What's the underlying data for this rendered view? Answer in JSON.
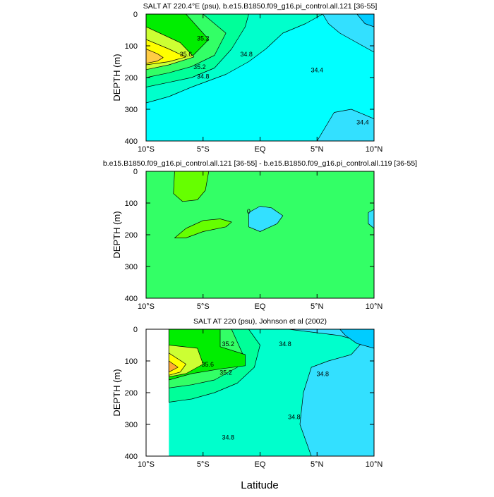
{
  "figure": {
    "xlabel": "Latitude"
  },
  "colors": {
    "cyan_dark": "#00ccff",
    "cyan_mid": "#33e0ff",
    "cyan": "#00ffff",
    "aqua_green": "#00ffcc",
    "spring_green": "#00ff99",
    "mint": "#33ff66",
    "green": "#00ee00",
    "lime": "#66ff00",
    "yellow_green": "#ccff33",
    "yellow": "#ffff00",
    "light_orange": "#ffcc44",
    "orange": "#ffaa33",
    "white": "#ffffff"
  },
  "chart_data": [
    {
      "type": "contour",
      "title": "SALT AT 220.4°E (psu), b.e15.B1850.f09_g16.pi_control.all.121 [36-55]",
      "xlabel": "",
      "ylabel": "DEPTH (m)",
      "xlim": [
        -10,
        10
      ],
      "ylim": [
        400,
        0
      ],
      "xticks": [
        -10,
        -5,
        0,
        5,
        10
      ],
      "xtick_labels": [
        "10°S",
        "5°S",
        "EQ",
        "5°N",
        "10°N"
      ],
      "yticks": [
        0,
        100,
        200,
        300,
        400
      ],
      "ytick_labels": [
        "0",
        "100",
        "200",
        "300",
        "400"
      ],
      "regions": [
        {
          "name": "background",
          "level": "34.4-34.6",
          "color": "cyan",
          "points": [
            [
              -10,
              0
            ],
            [
              10,
              0
            ],
            [
              10,
              400
            ],
            [
              -10,
              400
            ]
          ]
        },
        {
          "name": "low-north",
          "level": "<34.4",
          "color": "cyan_mid",
          "points": [
            [
              5.5,
              0
            ],
            [
              10,
              0
            ],
            [
              10,
              120
            ],
            [
              8.5,
              90
            ],
            [
              7,
              60
            ],
            [
              6,
              30
            ]
          ]
        },
        {
          "name": "low-north-deep",
          "level": "<34.4",
          "color": "cyan_mid",
          "points": [
            [
              10,
              330
            ],
            [
              8,
              300
            ],
            [
              6.5,
              310
            ],
            [
              5,
              400
            ],
            [
              10,
              400
            ]
          ]
        },
        {
          "name": "low-northeast",
          "level": "<34.2",
          "color": "cyan_dark",
          "points": [
            [
              8.5,
              0
            ],
            [
              10,
              0
            ],
            [
              10,
              40
            ],
            [
              9.2,
              30
            ]
          ]
        },
        {
          "name": "band-34.6",
          "level": "34.6-34.8",
          "color": "aqua_green",
          "points": [
            [
              -10,
              0
            ],
            [
              5.5,
              0
            ],
            [
              4,
              30
            ],
            [
              2,
              60
            ],
            [
              0.5,
              110
            ],
            [
              -1,
              150
            ],
            [
              -3,
              190
            ],
            [
              -6,
              230
            ],
            [
              -8,
              260
            ],
            [
              -10,
              280
            ]
          ]
        },
        {
          "name": "band-34.8",
          "level": "34.8-35.0",
          "color": "spring_green",
          "points": [
            [
              -10,
              0
            ],
            [
              -1,
              0
            ],
            [
              -1.3,
              40
            ],
            [
              -2.5,
              110
            ],
            [
              -4,
              170
            ],
            [
              -6,
              200
            ],
            [
              -8,
              215
            ],
            [
              -10,
              230
            ]
          ]
        },
        {
          "name": "band-35.0",
          "level": "35.0-35.2",
          "color": "mint",
          "points": [
            [
              -10,
              0
            ],
            [
              -5,
              0
            ],
            [
              -3,
              60
            ],
            [
              -4,
              130
            ],
            [
              -6,
              165
            ],
            [
              -8,
              185
            ],
            [
              -10,
              200
            ]
          ]
        },
        {
          "name": "band-35.2",
          "level": "35.2-35.4",
          "color": "green",
          "points": [
            [
              -10,
              0
            ],
            [
              -6.5,
              0
            ],
            [
              -4.5,
              80
            ],
            [
              -6,
              135
            ],
            [
              -8,
              150
            ],
            [
              -10,
              165
            ]
          ]
        },
        {
          "name": "band-35.4",
          "level": "35.4-35.6",
          "color": "yellow_green",
          "points": [
            [
              -10,
              40
            ],
            [
              -7,
              90
            ],
            [
              -5.8,
              135
            ],
            [
              -8,
              160
            ],
            [
              -10,
              175
            ]
          ]
        },
        {
          "name": "band-35.6",
          "level": "35.6-35.8",
          "color": "yellow",
          "points": [
            [
              -10,
              80
            ],
            [
              -8,
              110
            ],
            [
              -6.5,
              135
            ],
            [
              -8,
              150
            ],
            [
              -10,
              160
            ]
          ]
        },
        {
          "name": "core",
          "level": ">35.8",
          "color": "light_orange",
          "points": [
            [
              -10,
              110
            ],
            [
              -9,
              125
            ],
            [
              -8.5,
              137
            ],
            [
              -9,
              148
            ],
            [
              -10,
              155
            ]
          ]
        }
      ],
      "labels": [
        {
          "text": "35.2",
          "x": -5,
          "y": 75
        },
        {
          "text": "35.6",
          "x": -6.5,
          "y": 125
        },
        {
          "text": "35.2",
          "x": -5.3,
          "y": 165
        },
        {
          "text": "34.8",
          "x": -5,
          "y": 195
        },
        {
          "text": "34.8",
          "x": -1.2,
          "y": 125
        },
        {
          "text": "34.4",
          "x": 5,
          "y": 175
        },
        {
          "text": "34.4",
          "x": 9,
          "y": 340
        }
      ]
    },
    {
      "type": "contour",
      "title": "b.e15.B1850.f09_g16.pi_control.all.121 [36-55] - b.e15.B1850.f09_g16.pi_control.all.119 [36-55]",
      "xlabel": "",
      "ylabel": "DEPTH (m)",
      "xlim": [
        -10,
        10
      ],
      "ylim": [
        400,
        0
      ],
      "xticks": [
        -10,
        -5,
        0,
        5,
        10
      ],
      "xtick_labels": [
        "10°S",
        "5°S",
        "EQ",
        "5°N",
        "10°N"
      ],
      "yticks": [
        0,
        100,
        200,
        300,
        400
      ],
      "ytick_labels": [
        "0",
        "100",
        "200",
        "300",
        "400"
      ],
      "regions": [
        {
          "name": "background",
          "level": "0",
          "color": "mint",
          "points": [
            [
              -10,
              0
            ],
            [
              10,
              0
            ],
            [
              10,
              400
            ],
            [
              -10,
              400
            ]
          ]
        },
        {
          "name": "positive-upper",
          "level": ">0",
          "color": "lime",
          "points": [
            [
              -7.5,
              0
            ],
            [
              -4.5,
              0
            ],
            [
              -4.8,
              60
            ],
            [
              -5.5,
              90
            ],
            [
              -6.8,
              95
            ],
            [
              -7.6,
              70
            ]
          ]
        },
        {
          "name": "positive-lower",
          "level": ">0",
          "color": "lime",
          "points": [
            [
              -7.5,
              210
            ],
            [
              -6.5,
              180
            ],
            [
              -5,
              155
            ],
            [
              -3.5,
              150
            ],
            [
              -2.5,
              160
            ],
            [
              -3,
              175
            ],
            [
              -5,
              190
            ],
            [
              -6.5,
              210
            ]
          ]
        },
        {
          "name": "negative-eq",
          "level": "<0",
          "color": "cyan_mid",
          "points": [
            [
              -1,
              130
            ],
            [
              0,
              110
            ],
            [
              1,
              115
            ],
            [
              2,
              140
            ],
            [
              1.5,
              165
            ],
            [
              0,
              190
            ],
            [
              -1,
              175
            ]
          ]
        },
        {
          "name": "negative-east",
          "level": "<0",
          "color": "cyan_mid",
          "points": [
            [
              9.5,
              130
            ],
            [
              10,
              120
            ],
            [
              10,
              180
            ],
            [
              9.5,
              165
            ]
          ]
        }
      ],
      "labels": [
        {
          "text": "0",
          "x": -1,
          "y": 125
        }
      ]
    },
    {
      "type": "contour",
      "title": "SALT AT 220 (psu), Johnson et al (2002)",
      "xlabel": "Latitude",
      "ylabel": "DEPTH (m)",
      "xlim": [
        -10,
        10
      ],
      "ylim": [
        400,
        0
      ],
      "xticks": [
        -10,
        -5,
        0,
        5,
        10
      ],
      "xtick_labels": [
        "10°S",
        "5°S",
        "EQ",
        "5°N",
        "10°N"
      ],
      "yticks": [
        0,
        100,
        200,
        300,
        400
      ],
      "ytick_labels": [
        "0",
        "100",
        "200",
        "300",
        "400"
      ],
      "nodata_x_end": -8,
      "regions": [
        {
          "name": "nodata",
          "level": "missing",
          "color": "white",
          "points": [
            [
              -10,
              0
            ],
            [
              -8,
              0
            ],
            [
              -8,
              400
            ],
            [
              -10,
              400
            ]
          ]
        },
        {
          "name": "background",
          "level": "34.6-34.8",
          "color": "aqua_green",
          "points": [
            [
              -8,
              0
            ],
            [
              10,
              0
            ],
            [
              10,
              400
            ],
            [
              -8,
              400
            ]
          ]
        },
        {
          "name": "low-north",
          "level": "<34.6",
          "color": "cyan_mid",
          "points": [
            [
              2.5,
              0
            ],
            [
              10,
              0
            ],
            [
              10,
              400
            ],
            [
              4.5,
              400
            ],
            [
              3.5,
              300
            ],
            [
              3.8,
              200
            ],
            [
              4.5,
              120
            ],
            [
              6,
              100
            ],
            [
              8,
              80
            ],
            [
              9,
              40
            ],
            [
              7,
              20
            ]
          ]
        },
        {
          "name": "low-northeast",
          "level": "<34.4",
          "color": "cyan_dark",
          "points": [
            [
              7,
              0
            ],
            [
              10,
              0
            ],
            [
              10,
              60
            ],
            [
              8.5,
              45
            ],
            [
              7.5,
              20
            ]
          ]
        },
        {
          "name": "band-34.8",
          "level": "34.8-35.0",
          "color": "spring_green",
          "points": [
            [
              -8,
              0
            ],
            [
              -1,
              0
            ],
            [
              0,
              50
            ],
            [
              -0.5,
              120
            ],
            [
              -2,
              170
            ],
            [
              -4,
              200
            ],
            [
              -6,
              220
            ],
            [
              -8,
              230
            ]
          ]
        },
        {
          "name": "band-35.0",
          "level": "35.0-35.2",
          "color": "mint",
          "points": [
            [
              -8,
              0
            ],
            [
              -2.5,
              0
            ],
            [
              -1.5,
              80
            ],
            [
              -2,
              120
            ],
            [
              -4,
              160
            ],
            [
              -6,
              175
            ],
            [
              -8,
              185
            ]
          ]
        },
        {
          "name": "band-35.2",
          "level": "35.2-35.4",
          "color": "green",
          "points": [
            [
              -8,
              0
            ],
            [
              -3.5,
              0
            ],
            [
              -3.5,
              55
            ],
            [
              -1.3,
              80
            ],
            [
              -1.3,
              115
            ],
            [
              -3.5,
              125
            ],
            [
              -6,
              140
            ],
            [
              -8,
              160
            ]
          ]
        },
        {
          "name": "band-35.4",
          "level": "35.4-35.6",
          "color": "yellow_green",
          "points": [
            [
              -8,
              50
            ],
            [
              -5.5,
              60
            ],
            [
              -5,
              110
            ],
            [
              -6.5,
              140
            ],
            [
              -8,
              150
            ]
          ]
        },
        {
          "name": "band-35.6",
          "level": "35.6-35.8",
          "color": "yellow",
          "points": [
            [
              -8,
              75
            ],
            [
              -6.5,
              110
            ],
            [
              -7,
              135
            ],
            [
              -8,
              145
            ]
          ]
        },
        {
          "name": "core",
          "level": ">35.8",
          "color": "orange",
          "points": [
            [
              -8,
              100
            ],
            [
              -7.2,
              120
            ],
            [
              -8,
              135
            ]
          ]
        }
      ],
      "labels": [
        {
          "text": "35.2",
          "x": -2.8,
          "y": 45
        },
        {
          "text": "35.6",
          "x": -4.6,
          "y": 110
        },
        {
          "text": "35.2",
          "x": -3,
          "y": 135
        },
        {
          "text": "34.8",
          "x": 2.2,
          "y": 45
        },
        {
          "text": "34.8",
          "x": 5.5,
          "y": 140
        },
        {
          "text": "34.8",
          "x": 3,
          "y": 275
        },
        {
          "text": "34.8",
          "x": -2.8,
          "y": 340
        }
      ]
    }
  ]
}
